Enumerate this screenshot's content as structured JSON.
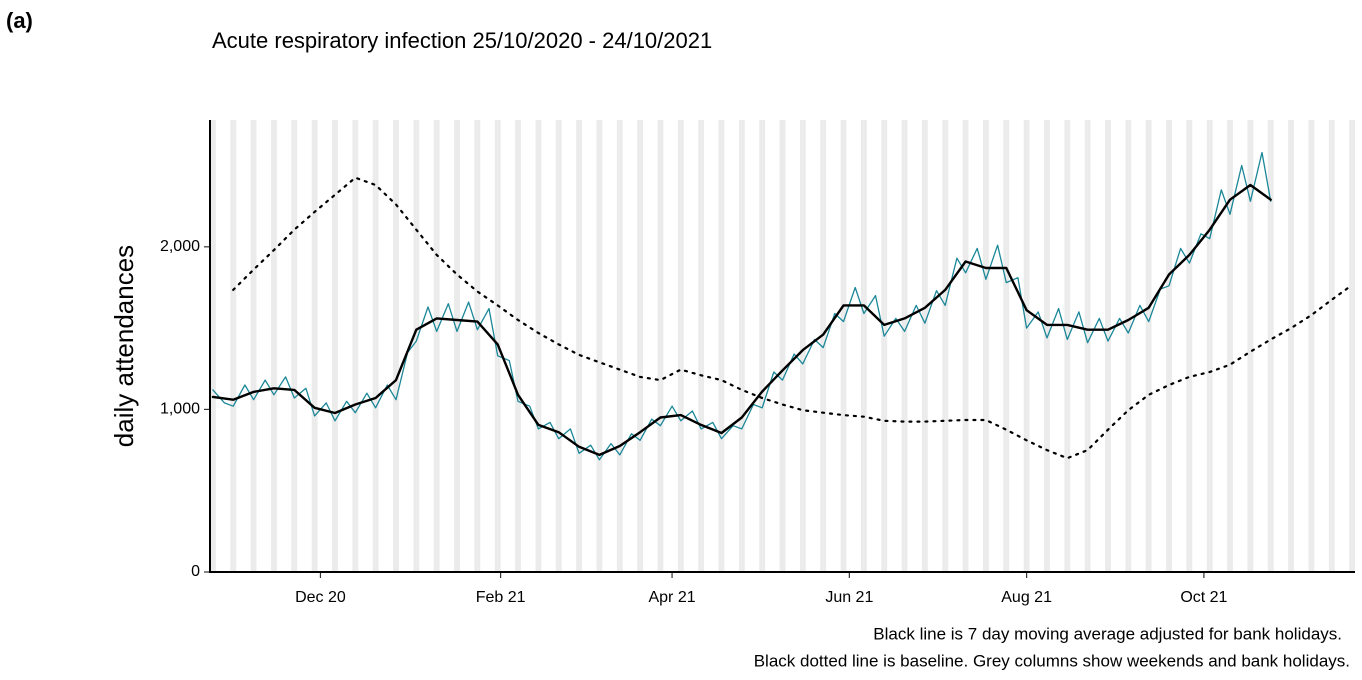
{
  "panel_label": "(a)",
  "chart_data": {
    "type": "line",
    "title": "Acute respiratory infection 25/10/2020 - 24/10/2021",
    "y_label": "daily attendances",
    "notes": [
      "Black line is 7 day moving average adjusted for bank holidays.",
      "Black dotted line is baseline. Grey columns show weekends and bank holidays."
    ],
    "xlim": [
      "2020-10-24",
      "2021-11-22"
    ],
    "xticks": [
      {
        "value": "2020-12-01",
        "label": "Dec 20"
      },
      {
        "value": "2021-02-01",
        "label": "Feb 21"
      },
      {
        "value": "2021-04-01",
        "label": "Apr 21"
      },
      {
        "value": "2021-06-01",
        "label": "Jun 21"
      },
      {
        "value": "2021-08-01",
        "label": "Aug 21"
      },
      {
        "value": "2021-10-01",
        "label": "Oct 21"
      }
    ],
    "ylim": [
      0,
      2780
    ],
    "yticks": [
      0,
      {
        "value": 1000,
        "label": "1,000"
      },
      {
        "value": 2000,
        "label": "2,000"
      }
    ],
    "weekend_columns": true,
    "x": [
      "2020-10-25",
      "2020-11-01",
      "2020-11-08",
      "2020-11-15",
      "2020-11-22",
      "2020-11-29",
      "2020-12-06",
      "2020-12-13",
      "2020-12-20",
      "2020-12-27",
      "2021-01-03",
      "2021-01-10",
      "2021-01-17",
      "2021-01-24",
      "2021-01-31",
      "2021-02-07",
      "2021-02-14",
      "2021-02-21",
      "2021-02-28",
      "2021-03-07",
      "2021-03-14",
      "2021-03-21",
      "2021-03-28",
      "2021-04-04",
      "2021-04-11",
      "2021-04-18",
      "2021-04-25",
      "2021-05-02",
      "2021-05-09",
      "2021-05-16",
      "2021-05-23",
      "2021-05-30",
      "2021-06-06",
      "2021-06-13",
      "2021-06-20",
      "2021-06-27",
      "2021-07-04",
      "2021-07-11",
      "2021-07-18",
      "2021-07-25",
      "2021-08-01",
      "2021-08-08",
      "2021-08-15",
      "2021-08-22",
      "2021-08-29",
      "2021-09-05",
      "2021-09-12",
      "2021-09-19",
      "2021-09-26",
      "2021-10-03",
      "2021-10-10",
      "2021-10-17",
      "2021-10-24",
      "2021-10-31",
      "2021-11-07",
      "2021-11-14",
      "2021-11-21"
    ],
    "series": [
      {
        "color": "#1b8798",
        "width": 1.3,
        "dash": "none",
        "x": [
          "2020-10-25",
          "2020-10-29",
          "2020-11-01",
          "2020-11-05",
          "2020-11-08",
          "2020-11-12",
          "2020-11-15",
          "2020-11-19",
          "2020-11-22",
          "2020-11-26",
          "2020-11-29",
          "2020-12-03",
          "2020-12-06",
          "2020-12-10",
          "2020-12-13",
          "2020-12-17",
          "2020-12-20",
          "2020-12-24",
          "2020-12-27",
          "2020-12-31",
          "2021-01-03",
          "2021-01-07",
          "2021-01-10",
          "2021-01-14",
          "2021-01-17",
          "2021-01-21",
          "2021-01-24",
          "2021-01-28",
          "2021-01-31",
          "2021-02-04",
          "2021-02-07",
          "2021-02-11",
          "2021-02-14",
          "2021-02-18",
          "2021-02-21",
          "2021-02-25",
          "2021-02-28",
          "2021-03-04",
          "2021-03-07",
          "2021-03-11",
          "2021-03-14",
          "2021-03-18",
          "2021-03-21",
          "2021-03-25",
          "2021-03-28",
          "2021-04-01",
          "2021-04-04",
          "2021-04-08",
          "2021-04-11",
          "2021-04-15",
          "2021-04-18",
          "2021-04-22",
          "2021-04-25",
          "2021-04-29",
          "2021-05-02",
          "2021-05-06",
          "2021-05-09",
          "2021-05-13",
          "2021-05-16",
          "2021-05-20",
          "2021-05-23",
          "2021-05-27",
          "2021-05-30",
          "2021-06-03",
          "2021-06-06",
          "2021-06-10",
          "2021-06-13",
          "2021-06-17",
          "2021-06-20",
          "2021-06-24",
          "2021-06-27",
          "2021-07-01",
          "2021-07-04",
          "2021-07-08",
          "2021-07-11",
          "2021-07-15",
          "2021-07-18",
          "2021-07-22",
          "2021-07-25",
          "2021-07-29",
          "2021-08-01",
          "2021-08-05",
          "2021-08-08",
          "2021-08-12",
          "2021-08-15",
          "2021-08-19",
          "2021-08-22",
          "2021-08-26",
          "2021-08-29",
          "2021-09-02",
          "2021-09-05",
          "2021-09-09",
          "2021-09-12",
          "2021-09-16",
          "2021-09-19",
          "2021-09-23",
          "2021-09-26",
          "2021-09-30",
          "2021-10-03",
          "2021-10-07",
          "2021-10-10",
          "2021-10-14",
          "2021-10-17",
          "2021-10-21",
          "2021-10-24"
        ],
        "values": [
          1120,
          1040,
          1020,
          1150,
          1060,
          1180,
          1090,
          1200,
          1070,
          1130,
          960,
          1040,
          930,
          1050,
          980,
          1100,
          1010,
          1150,
          1060,
          1350,
          1420,
          1630,
          1480,
          1650,
          1480,
          1660,
          1490,
          1620,
          1330,
          1300,
          1050,
          1020,
          880,
          920,
          820,
          880,
          730,
          780,
          690,
          790,
          720,
          850,
          810,
          940,
          900,
          1020,
          930,
          990,
          880,
          920,
          820,
          900,
          880,
          1030,
          1010,
          1230,
          1180,
          1340,
          1280,
          1430,
          1380,
          1590,
          1540,
          1750,
          1590,
          1700,
          1450,
          1560,
          1480,
          1640,
          1530,
          1730,
          1640,
          1930,
          1840,
          1990,
          1800,
          2010,
          1780,
          1810,
          1500,
          1600,
          1440,
          1620,
          1430,
          1600,
          1410,
          1560,
          1420,
          1560,
          1470,
          1640,
          1540,
          1740,
          1760,
          1990,
          1900,
          2080,
          2050,
          2350,
          2200,
          2500,
          2280,
          2580,
          2280
        ]
      },
      {
        "color": "#000000",
        "width": 2.4,
        "dash": "none",
        "values": [
          1077,
          1060,
          1108,
          1130,
          1120,
          1010,
          978,
          1030,
          1070,
          1180,
          1490,
          1560,
          1550,
          1540,
          1400,
          1090,
          905,
          860,
          770,
          720,
          775,
          860,
          950,
          965,
          905,
          855,
          950,
          1110,
          1240,
          1365,
          1460,
          1640,
          1640,
          1520,
          1560,
          1625,
          1735,
          1910,
          1870,
          1870,
          1610,
          1520,
          1520,
          1490,
          1490,
          1550,
          1625,
          1830,
          1950,
          2105,
          2290,
          2380,
          2290,
          null,
          null,
          null,
          null
        ]
      },
      {
        "color": "#000000",
        "width": 2.2,
        "dash": "2 6",
        "values": [
          null,
          1735,
          1860,
          1980,
          2105,
          2215,
          2320,
          2425,
          2380,
          2260,
          2105,
          1950,
          1830,
          1725,
          1640,
          1550,
          1470,
          1400,
          1335,
          1290,
          1245,
          1200,
          1180,
          1245,
          1210,
          1180,
          1120,
          1070,
          1030,
          995,
          980,
          965,
          955,
          930,
          925,
          925,
          930,
          935,
          935,
          875,
          810,
          750,
          700,
          750,
          875,
          995,
          1090,
          1150,
          1200,
          1230,
          1275,
          1355,
          1430,
          1500,
          1580,
          1675,
          1765
        ]
      }
    ]
  }
}
